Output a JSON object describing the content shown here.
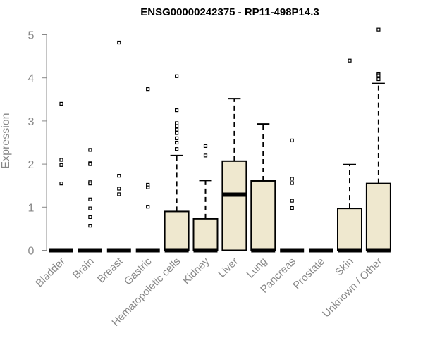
{
  "chart_data": {
    "type": "boxplot",
    "title": "ENSG00000242375 - RP11-498P14.3",
    "xlabel": "",
    "ylabel": "Expression",
    "ylim": [
      0,
      5.2
    ],
    "yticks": [
      0,
      1,
      2,
      3,
      4,
      5
    ],
    "grid": false,
    "box_color": "#EFE8CF",
    "categories": [
      "Bladder",
      "Brain",
      "Breast",
      "Gastric",
      "Hematopoietic cells",
      "Kidney",
      "Liver",
      "Lung",
      "Pancreas",
      "Prostate",
      "Skin",
      "Unknown / Other"
    ],
    "boxes": [
      {
        "category": "Bladder",
        "q1": 0,
        "median": 0,
        "q3": 0,
        "whisker_low": 0,
        "whisker_high": 0,
        "outliers": [
          3.4,
          2.1,
          1.98,
          1.55
        ]
      },
      {
        "category": "Brain",
        "q1": 0,
        "median": 0,
        "q3": 0,
        "whisker_low": 0,
        "whisker_high": 0,
        "outliers": [
          2.33,
          2.02,
          2.0,
          1.58,
          1.55,
          1.18,
          0.97,
          0.77,
          0.57
        ]
      },
      {
        "category": "Breast",
        "q1": 0,
        "median": 0,
        "q3": 0,
        "whisker_low": 0,
        "whisker_high": 0,
        "outliers": [
          4.82,
          1.73,
          1.43,
          1.3
        ]
      },
      {
        "category": "Gastric",
        "q1": 0,
        "median": 0,
        "q3": 0,
        "whisker_low": 0,
        "whisker_high": 0,
        "outliers": [
          3.74,
          1.52,
          1.46,
          1.01
        ]
      },
      {
        "category": "Hematopoietic cells",
        "q1": 0,
        "median": 0,
        "q3": 0.9,
        "whisker_low": 0,
        "whisker_high": 2.2,
        "outliers": [
          4.04,
          3.25,
          2.95,
          2.88,
          2.8,
          2.72,
          2.6,
          2.5,
          2.35
        ]
      },
      {
        "category": "Kidney",
        "q1": 0,
        "median": 0,
        "q3": 0.73,
        "whisker_low": 0,
        "whisker_high": 1.62,
        "outliers": [
          2.42,
          2.2
        ]
      },
      {
        "category": "Liver",
        "q1": 0,
        "median": 1.29,
        "q3": 2.07,
        "whisker_low": 0,
        "whisker_high": 3.52,
        "outliers": []
      },
      {
        "category": "Lung",
        "q1": 0,
        "median": 0,
        "q3": 1.61,
        "whisker_low": 0,
        "whisker_high": 2.93,
        "outliers": []
      },
      {
        "category": "Pancreas",
        "q1": 0,
        "median": 0,
        "q3": 0,
        "whisker_low": 0,
        "whisker_high": 0,
        "outliers": [
          2.55,
          1.66,
          1.56,
          1.15,
          0.98
        ]
      },
      {
        "category": "Prostate",
        "q1": 0,
        "median": 0,
        "q3": 0,
        "whisker_low": 0,
        "whisker_high": 0,
        "outliers": []
      },
      {
        "category": "Skin",
        "q1": 0,
        "median": 0,
        "q3": 0.97,
        "whisker_low": 0,
        "whisker_high": 1.99,
        "outliers": [
          4.4
        ]
      },
      {
        "category": "Unknown / Other",
        "q1": 0,
        "median": 0,
        "q3": 1.55,
        "whisker_low": 0,
        "whisker_high": 3.87,
        "outliers": [
          5.12,
          4.1,
          4.06,
          3.97
        ]
      }
    ]
  }
}
